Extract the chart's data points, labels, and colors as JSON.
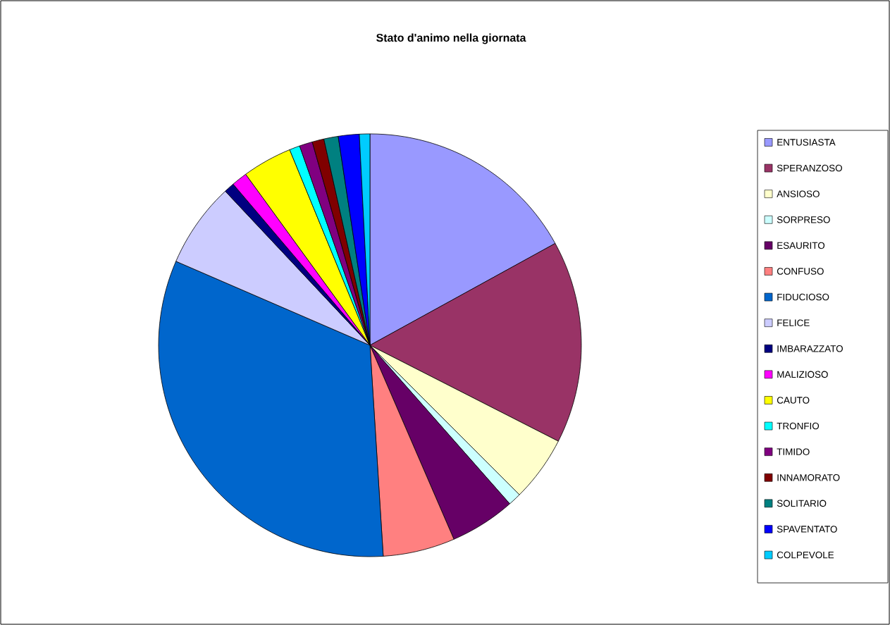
{
  "chart_data": {
    "type": "pie",
    "title": "Stato d'animo nella giornata",
    "categories": [
      "ENTUSIASTA",
      "SPERANZOSO",
      "ANSIOSO",
      "SORPRESO",
      "ESAURITO",
      "CONFUSO",
      "FIDUCIOSO",
      "FELICE",
      "IMBARAZZATO",
      "MALIZIOSO",
      "CAUTO",
      "TRONFIO",
      "TIMIDO",
      "INNAMORATO",
      "SOLITARIO",
      "SPAVENTATO",
      "COLPEVOLE"
    ],
    "values": [
      17,
      15.5,
      5,
      1,
      5,
      5.5,
      32.5,
      6.5,
      0.8,
      1.2,
      3.8,
      0.8,
      1,
      0.9,
      1.1,
      1.6,
      0.8
    ],
    "colors": [
      "#9999ff",
      "#993366",
      "#ffffcc",
      "#ccffff",
      "#660066",
      "#ff8080",
      "#0066cc",
      "#ccccff",
      "#000080",
      "#ff00ff",
      "#ffff00",
      "#00ffff",
      "#800080",
      "#800000",
      "#008080",
      "#0000ff",
      "#00ccff"
    ],
    "legend": "right"
  }
}
